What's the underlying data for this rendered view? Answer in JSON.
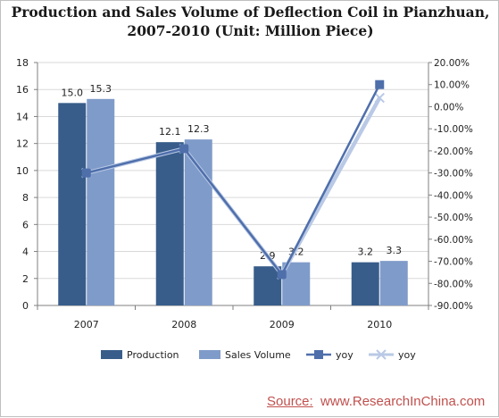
{
  "title_line1": "Production and Sales Volume of Deflection Coil in Pianzhuan,",
  "title_line2": "2007-2010 (Unit: Million Piece)",
  "source_label": "Source:",
  "source_value": "www.ResearchInChina.com",
  "colors": {
    "production": "#385d8a",
    "sales": "#7f9bc9",
    "yoy_square": "#4f6fab",
    "yoy_x": "#b9c9e6",
    "grid": "#d9d9d9",
    "axis": "#7f7f7f",
    "source": "#c0504d"
  },
  "chart_data": {
    "type": "bar",
    "categories": [
      "2007",
      "2008",
      "2009",
      "2010"
    ],
    "series": [
      {
        "name": "Production",
        "type": "bar",
        "axis": "left",
        "values": [
          15.0,
          12.1,
          2.9,
          3.2
        ],
        "labels": [
          "15.0",
          "12.1",
          "2.9",
          "3.2"
        ]
      },
      {
        "name": "Sales Volume",
        "type": "bar",
        "axis": "left",
        "values": [
          15.3,
          12.3,
          3.2,
          3.3
        ],
        "labels": [
          "15.3",
          "12.3",
          "3.2",
          "3.3"
        ]
      },
      {
        "name": "yoy",
        "type": "line",
        "marker": "square",
        "axis": "right",
        "values": [
          -0.3,
          -0.19,
          -0.76,
          0.1
        ]
      },
      {
        "name": "yoy",
        "type": "line",
        "marker": "x",
        "axis": "right",
        "values": [
          -0.3,
          -0.19,
          -0.76,
          0.04
        ]
      }
    ],
    "ylim": [
      0,
      18
    ],
    "yticks": [
      0,
      2,
      4,
      6,
      8,
      10,
      12,
      14,
      16,
      18
    ],
    "y2lim": [
      -0.9,
      0.2
    ],
    "y2ticks": [
      "20.00%",
      "10.00%",
      "0.00%",
      "-10.00%",
      "-20.00%",
      "-30.00%",
      "-40.00%",
      "-50.00%",
      "-60.00%",
      "-70.00%",
      "-80.00%",
      "-90.00%"
    ],
    "grid": true,
    "legend_position": "bottom"
  }
}
